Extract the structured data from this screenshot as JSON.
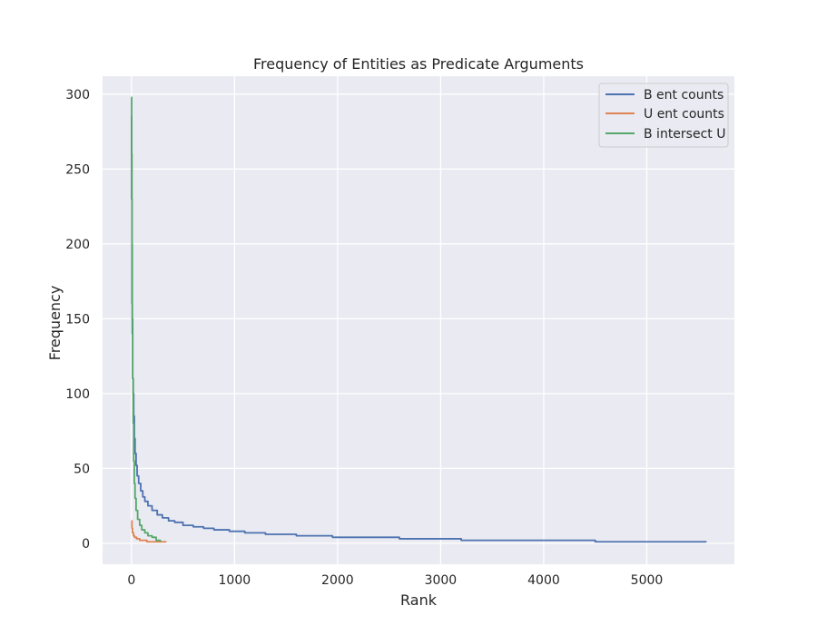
{
  "chart_data": {
    "type": "line",
    "title": "Frequency of Entities as Predicate Arguments",
    "xlabel": "Rank",
    "ylabel": "Frequency",
    "xlim": [
      -280,
      5850
    ],
    "ylim": [
      -14,
      312
    ],
    "xticks": [
      0,
      1000,
      2000,
      3000,
      4000,
      5000
    ],
    "yticks": [
      0,
      50,
      100,
      150,
      200,
      250,
      300
    ],
    "grid": true,
    "legend_position": "top-right",
    "background": "#eaeaf2",
    "series": [
      {
        "name": "B ent counts",
        "color": "#4c72b0",
        "x": [
          0,
          2,
          5,
          8,
          12,
          17,
          22,
          28,
          35,
          45,
          55,
          70,
          90,
          110,
          130,
          160,
          200,
          250,
          300,
          360,
          420,
          500,
          600,
          700,
          800,
          950,
          1100,
          1300,
          1600,
          1950,
          2600,
          3200,
          4500,
          5580
        ],
        "y": [
          285,
          230,
          160,
          140,
          110,
          100,
          85,
          70,
          60,
          52,
          45,
          40,
          35,
          31,
          28,
          25,
          22,
          19,
          17,
          15,
          14,
          12,
          11,
          10,
          9,
          8,
          7,
          6,
          5,
          4,
          3,
          2,
          1,
          1
        ]
      },
      {
        "name": "U ent counts",
        "color": "#dd8452",
        "x": [
          0,
          5,
          10,
          20,
          30,
          50,
          80,
          110,
          150,
          200,
          260,
          340
        ],
        "y": [
          15,
          10,
          7,
          5,
          4,
          3,
          2,
          2,
          1,
          1,
          1,
          1
        ]
      },
      {
        "name": "B intersect U",
        "color": "#55a868",
        "x": [
          0,
          2,
          5,
          8,
          12,
          17,
          22,
          28,
          35,
          45,
          60,
          80,
          100,
          130,
          160,
          200,
          240,
          280
        ],
        "y": [
          298,
          260,
          200,
          150,
          110,
          80,
          55,
          40,
          30,
          22,
          16,
          12,
          9,
          7,
          5,
          4,
          2,
          1
        ]
      }
    ]
  }
}
